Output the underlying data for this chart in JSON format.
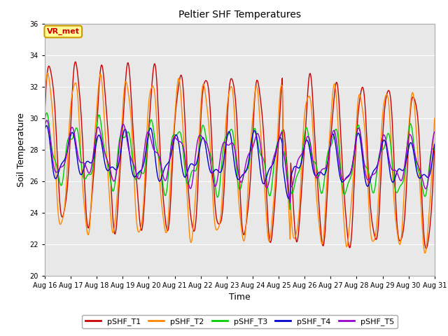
{
  "title": "Peltier SHF Temperatures",
  "xlabel": "Time",
  "ylabel": "Soil Temperature",
  "ylim": [
    20,
    36
  ],
  "yticks": [
    20,
    22,
    24,
    26,
    28,
    30,
    32,
    34,
    36
  ],
  "date_labels": [
    "Aug 16",
    "Aug 17",
    "Aug 18",
    "Aug 19",
    "Aug 20",
    "Aug 21",
    "Aug 22",
    "Aug 23",
    "Aug 24",
    "Aug 25",
    "Aug 26",
    "Aug 27",
    "Aug 28",
    "Aug 29",
    "Aug 30",
    "Aug 31"
  ],
  "series_colors": [
    "#cc0000",
    "#ff8800",
    "#00cc00",
    "#0000cc",
    "#9900cc"
  ],
  "series_labels": [
    "pSHF_T1",
    "pSHF_T2",
    "pSHF_T3",
    "pSHF_T4",
    "pSHF_T5"
  ],
  "bg_color": "#e8e8e8",
  "annotation_text": "VR_met",
  "annotation_bg": "#ffff99",
  "annotation_border": "#cc9900",
  "n_points": 600,
  "n_days": 15,
  "t1_base": 28.5,
  "t1_base_slope": -0.12,
  "t1_amp": 5.0,
  "t1_phase": 0.3,
  "t2_base": 27.8,
  "t2_base_slope": -0.08,
  "t2_amp": 4.8,
  "t2_phase": 0.7,
  "t3_base": 27.8,
  "t3_base_slope": -0.05,
  "t3_amp": 1.8,
  "t3_phase": 0.9,
  "t4_base": 27.6,
  "t4_base_slope": -0.04,
  "t4_amp": 1.2,
  "t4_phase": 1.3,
  "t5_base": 27.8,
  "t5_base_slope": -0.04,
  "t5_amp": 1.4,
  "t5_phase": 1.1
}
